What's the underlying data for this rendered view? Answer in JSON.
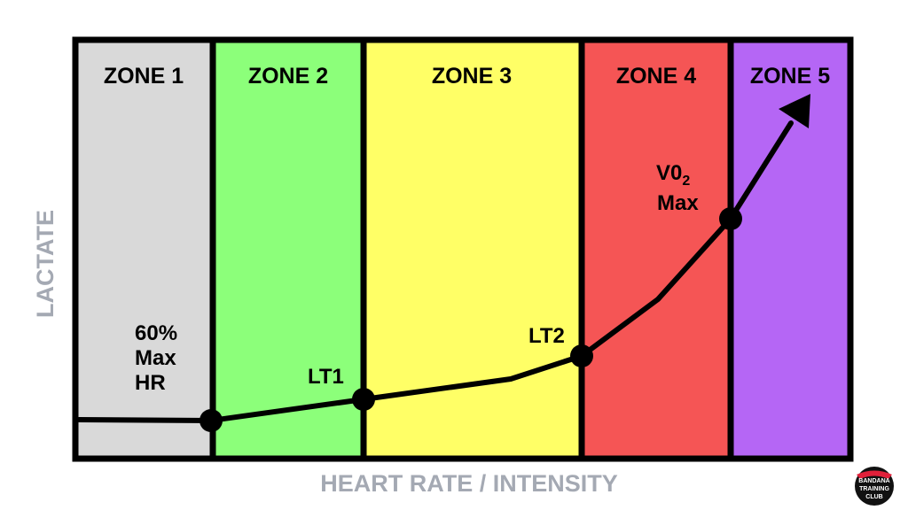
{
  "zones": [
    {
      "label": "ZONE 1",
      "color": "#d9d9d9"
    },
    {
      "label": "ZONE 2",
      "color": "#8cff7a"
    },
    {
      "label": "ZONE 3",
      "color": "#ffff66"
    },
    {
      "label": "ZONE 4",
      "color": "#f55555"
    },
    {
      "label": "ZONE 5",
      "color": "#b566f5"
    }
  ],
  "points": [
    {
      "label_lines": [
        "60%",
        "Max",
        "HR"
      ]
    },
    {
      "label_lines": [
        "LT1"
      ]
    },
    {
      "label_lines": [
        "LT2"
      ]
    },
    {
      "label_lines": [
        "V0",
        "Max"
      ],
      "subscript": "2"
    }
  ],
  "axes": {
    "x_label": "HEART RATE / INTENSITY",
    "y_label": "LACTATE"
  },
  "logo": {
    "text_top": "BANDANA",
    "text_middle": "TRAINING",
    "text_bottom": "CLUB",
    "bandana_color": "#e0203a"
  },
  "colors": {
    "frame": "#000000",
    "curve": "#000000",
    "axis_text": "#a4a9b3"
  }
}
